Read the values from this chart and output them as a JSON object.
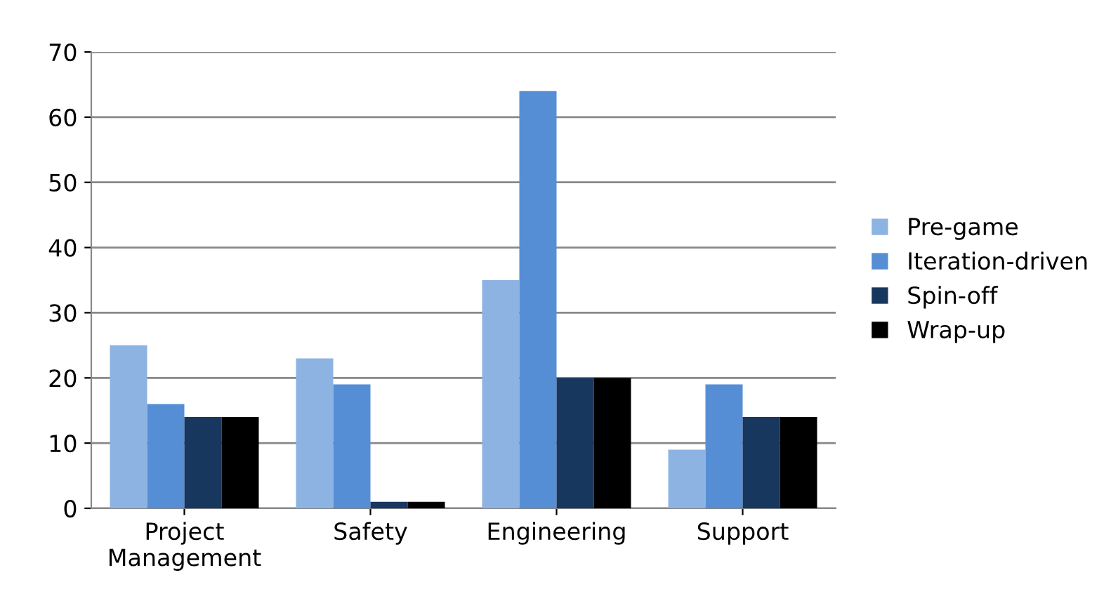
{
  "chart_data": {
    "type": "bar",
    "categories": [
      "Project\nManagement",
      "Safety",
      "Engineering",
      "Support"
    ],
    "series": [
      {
        "name": "Pre-game",
        "color": "#8db3e2",
        "values": [
          25,
          23,
          35,
          9
        ]
      },
      {
        "name": "Iteration-driven",
        "color": "#558ed5",
        "values": [
          16,
          19,
          64,
          19
        ]
      },
      {
        "name": "Spin-off",
        "color": "#17375e",
        "values": [
          14,
          1,
          20,
          14
        ]
      },
      {
        "name": "Wrap-up",
        "color": "#000000",
        "values": [
          14,
          1,
          20,
          14
        ]
      }
    ],
    "ylim": [
      0,
      70
    ],
    "yticks": [
      0,
      10,
      20,
      30,
      40,
      50,
      60,
      70
    ],
    "grid": "y",
    "legend": "right"
  }
}
